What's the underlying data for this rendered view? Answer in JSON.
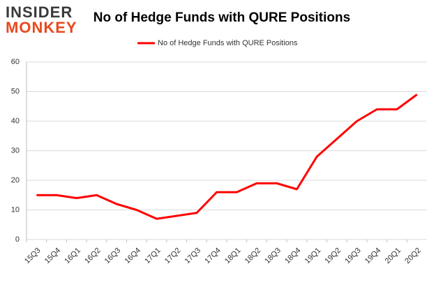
{
  "logo": {
    "line1": "INSIDER",
    "line2": "MONKEY"
  },
  "chart_data": {
    "type": "line",
    "title": "No of Hedge Funds with QURE Positions",
    "categories": [
      "15Q3",
      "15Q4",
      "16Q1",
      "16Q2",
      "16Q3",
      "16Q4",
      "17Q1",
      "17Q2",
      "17Q3",
      "17Q4",
      "18Q1",
      "18Q2",
      "18Q3",
      "18Q4",
      "19Q1",
      "19Q2",
      "19Q3",
      "19Q4",
      "20Q1",
      "20Q2"
    ],
    "series": [
      {
        "name": "No of Hedge Funds with QURE Positions",
        "color": "#ff0000",
        "values": [
          15,
          15,
          14,
          15,
          12,
          10,
          7,
          8,
          9,
          16,
          16,
          19,
          19,
          17,
          28,
          34,
          40,
          44,
          44,
          49
        ]
      }
    ],
    "ylim": [
      0,
      60
    ],
    "yticks": [
      0,
      10,
      20,
      30,
      40,
      50,
      60
    ],
    "grid": true
  }
}
